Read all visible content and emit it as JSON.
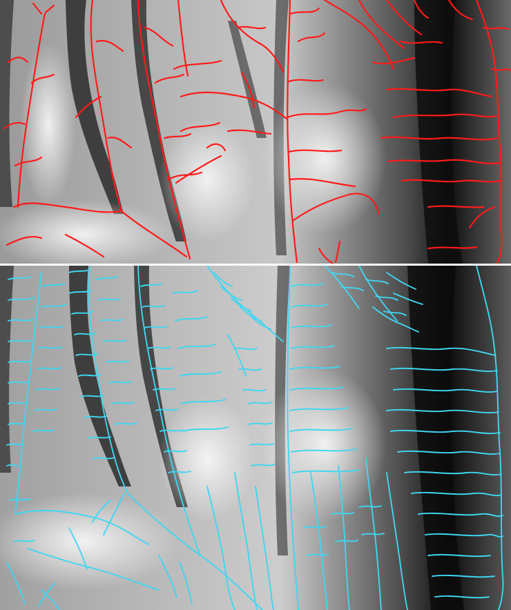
{
  "figure": {
    "panels": [
      {
        "id": "top",
        "description": "",
        "drainage_color": "#ff1a1a",
        "terrain": "grayscale-hillshade"
      },
      {
        "id": "bottom",
        "description": "",
        "drainage_color": "#3fd6f2",
        "terrain": "grayscale-hillshade"
      }
    ],
    "divider_color": "#ffffff"
  }
}
